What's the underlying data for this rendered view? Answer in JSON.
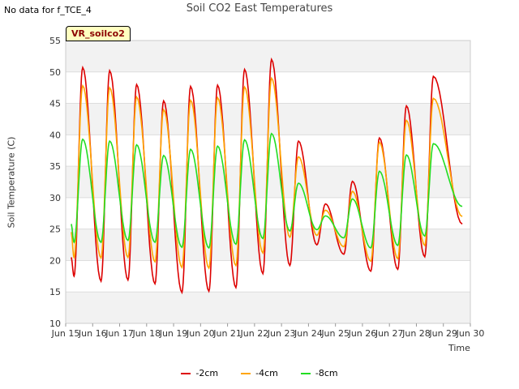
{
  "page": {
    "corner_note": "No data for f_TCE_4",
    "title": "Soil CO2 East Temperatures",
    "tag": "VR_soilco2"
  },
  "chart_data": {
    "type": "line",
    "title": "Soil CO2 East Temperatures",
    "xlabel": "Time",
    "ylabel": "Soil Temperature (C)",
    "xlim": [
      15.0,
      30.0
    ],
    "ylim": [
      10,
      55
    ],
    "x_ticks": [
      15,
      16,
      17,
      18,
      19,
      20,
      21,
      22,
      23,
      24,
      25,
      26,
      27,
      28,
      29,
      30
    ],
    "x_tick_labels": [
      "Jun 15",
      "Jun 16",
      "Jun 17",
      "Jun 18",
      "Jun 19",
      "Jun 20",
      "Jun 21",
      "Jun 22",
      "Jun 23",
      "Jun 24",
      "Jun 25",
      "Jun 26",
      "Jun 27",
      "Jun 28",
      "Jun 29",
      "Jun 30"
    ],
    "y_ticks": [
      10,
      15,
      20,
      25,
      30,
      35,
      40,
      45,
      50,
      55
    ],
    "grid": "horizontal",
    "legend_position": "bottom",
    "daily_extremes": {
      "dates": [
        "Jun 15",
        "Jun 16",
        "Jun 17",
        "Jun 18",
        "Jun 19",
        "Jun 20",
        "Jun 21",
        "Jun 22",
        "Jun 23",
        "Jun 24",
        "Jun 25",
        "Jun 26",
        "Jun 27",
        "Jun 28"
      ],
      "series": [
        {
          "name": "-2cm",
          "color": "#dd0000",
          "start": 20.5,
          "lows": [
            17.5,
            16.7,
            16.9,
            16.3,
            14.9,
            15.1,
            15.7,
            17.9,
            19.2,
            22.5,
            21.0,
            18.3,
            18.6,
            20.6
          ],
          "highs": [
            50.7,
            50.2,
            48.0,
            45.4,
            47.7,
            47.9,
            50.4,
            52.0,
            39.0,
            29.0,
            32.6,
            39.5,
            44.6,
            49.3
          ],
          "end": 25.8
        },
        {
          "name": "-4cm",
          "color": "#ffa500",
          "start": 24.5,
          "lows": [
            20.5,
            20.4,
            20.5,
            19.8,
            18.9,
            18.8,
            19.2,
            21.2,
            23.7,
            24.0,
            22.2,
            19.9,
            20.3,
            22.4
          ],
          "highs": [
            47.8,
            47.5,
            46.0,
            44.0,
            45.5,
            45.9,
            47.6,
            49.0,
            36.5,
            28.0,
            31.0,
            38.8,
            42.3,
            45.8
          ],
          "end": 27.0
        },
        {
          "name": "-8cm",
          "color": "#22dd22",
          "start": 25.8,
          "lows": [
            22.9,
            22.9,
            23.2,
            22.9,
            22.1,
            22.0,
            22.6,
            23.5,
            24.7,
            24.9,
            23.6,
            22.0,
            22.4,
            23.9
          ],
          "highs": [
            39.3,
            39.0,
            38.4,
            36.7,
            37.7,
            38.2,
            39.2,
            40.2,
            32.3,
            27.1,
            29.8,
            34.2,
            36.8,
            38.6
          ],
          "end": 28.6
        }
      ]
    }
  }
}
